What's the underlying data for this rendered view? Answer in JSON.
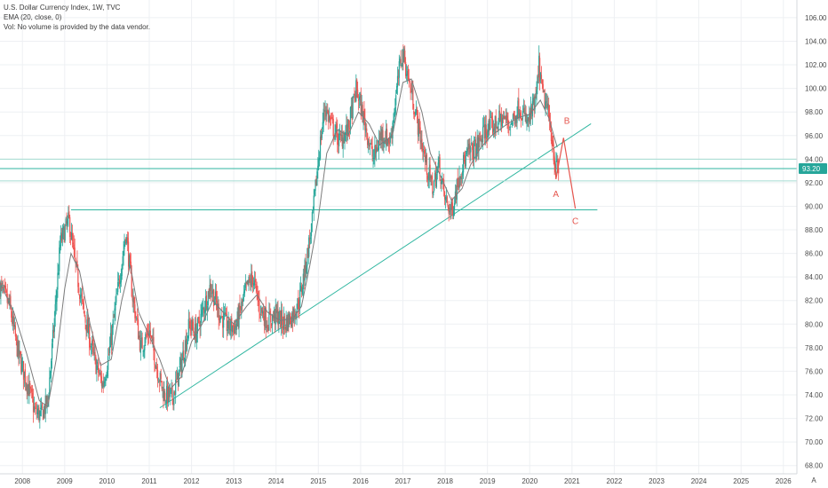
{
  "chart_data": {
    "type": "candlestick",
    "legend": {
      "title": "U.S. Dollar Currency Index, 1W, TVC",
      "indicator": "EMA (20, close, 0)",
      "volume_note": "Vol: No volume is provided by the data vendor."
    },
    "x_ticks": [
      "2008",
      "2009",
      "2010",
      "2011",
      "2012",
      "2013",
      "2014",
      "2015",
      "2016",
      "2017",
      "2018",
      "2019",
      "2020",
      "2021",
      "2022",
      "2023",
      "2024",
      "2025",
      "2026"
    ],
    "y_ticks": [
      68,
      70,
      72,
      74,
      76,
      78,
      80,
      82,
      84,
      86,
      88,
      90,
      92,
      94,
      96,
      98,
      100,
      102,
      104,
      106
    ],
    "y_tick_labels": [
      "68.00",
      "70.00",
      "72.00",
      "74.00",
      "76.00",
      "78.00",
      "80.00",
      "82.00",
      "84.00",
      "86.00",
      "88.00",
      "90.00",
      "92.00",
      "94.00",
      "96.00",
      "98.00",
      "100.00",
      "102.00",
      "104.00",
      "106.00"
    ],
    "ylim": [
      67.3,
      107.5
    ],
    "xlim": [
      2007.47,
      2026.32
    ],
    "grid": true,
    "price_path": [
      [
        2007.47,
        83.2
      ],
      [
        2007.7,
        81.5
      ],
      [
        2007.9,
        77.5
      ],
      [
        2008.15,
        74.5
      ],
      [
        2008.3,
        72.5
      ],
      [
        2008.45,
        72.3
      ],
      [
        2008.6,
        73.5
      ],
      [
        2008.75,
        80.0
      ],
      [
        2008.9,
        87.0
      ],
      [
        2009.1,
        88.8
      ],
      [
        2009.25,
        85.0
      ],
      [
        2009.45,
        81.0
      ],
      [
        2009.7,
        77.0
      ],
      [
        2009.9,
        74.8
      ],
      [
        2010.05,
        77.5
      ],
      [
        2010.3,
        84.0
      ],
      [
        2010.45,
        87.8
      ],
      [
        2010.6,
        82.5
      ],
      [
        2010.8,
        78.0
      ],
      [
        2011.0,
        79.5
      ],
      [
        2011.2,
        76.0
      ],
      [
        2011.35,
        74.0
      ],
      [
        2011.55,
        73.8
      ],
      [
        2011.75,
        76.5
      ],
      [
        2011.95,
        80.0
      ],
      [
        2012.1,
        79.2
      ],
      [
        2012.3,
        81.5
      ],
      [
        2012.45,
        83.3
      ],
      [
        2012.65,
        81.0
      ],
      [
        2012.85,
        79.8
      ],
      [
        2013.05,
        79.8
      ],
      [
        2013.3,
        83.0
      ],
      [
        2013.45,
        84.0
      ],
      [
        2013.6,
        81.5
      ],
      [
        2013.8,
        80.2
      ],
      [
        2014.0,
        80.8
      ],
      [
        2014.2,
        80.0
      ],
      [
        2014.4,
        80.8
      ],
      [
        2014.55,
        82.0
      ],
      [
        2014.7,
        85.0
      ],
      [
        2014.85,
        88.5
      ],
      [
        2015.0,
        94.0
      ],
      [
        2015.15,
        98.5
      ],
      [
        2015.3,
        97.0
      ],
      [
        2015.5,
        95.5
      ],
      [
        2015.7,
        96.5
      ],
      [
        2015.9,
        100.0
      ],
      [
        2016.1,
        97.0
      ],
      [
        2016.3,
        94.0
      ],
      [
        2016.5,
        96.2
      ],
      [
        2016.7,
        95.5
      ],
      [
        2016.95,
        102.5
      ],
      [
        2017.0,
        103.0
      ],
      [
        2017.15,
        100.5
      ],
      [
        2017.35,
        97.0
      ],
      [
        2017.55,
        93.5
      ],
      [
        2017.7,
        91.5
      ],
      [
        2017.85,
        93.5
      ],
      [
        2018.0,
        90.5
      ],
      [
        2018.15,
        89.5
      ],
      [
        2018.35,
        93.0
      ],
      [
        2018.55,
        94.5
      ],
      [
        2018.75,
        95.0
      ],
      [
        2018.95,
        96.5
      ],
      [
        2019.15,
        96.8
      ],
      [
        2019.35,
        97.5
      ],
      [
        2019.55,
        97.0
      ],
      [
        2019.75,
        98.5
      ],
      [
        2019.95,
        97.0
      ],
      [
        2020.15,
        99.0
      ],
      [
        2020.22,
        102.0
      ],
      [
        2020.3,
        99.5
      ],
      [
        2020.4,
        98.5
      ],
      [
        2020.5,
        96.5
      ],
      [
        2020.6,
        93.5
      ],
      [
        2020.7,
        92.8
      ]
    ],
    "ema_path": [
      [
        2007.47,
        83.5
      ],
      [
        2007.8,
        81.0
      ],
      [
        2008.1,
        77.5
      ],
      [
        2008.4,
        73.5
      ],
      [
        2008.6,
        73.0
      ],
      [
        2008.8,
        77.0
      ],
      [
        2009.0,
        83.0
      ],
      [
        2009.15,
        86.0
      ],
      [
        2009.35,
        84.5
      ],
      [
        2009.6,
        80.0
      ],
      [
        2009.85,
        76.5
      ],
      [
        2010.1,
        77.0
      ],
      [
        2010.35,
        82.0
      ],
      [
        2010.55,
        85.0
      ],
      [
        2010.75,
        81.0
      ],
      [
        2011.0,
        79.0
      ],
      [
        2011.25,
        77.0
      ],
      [
        2011.5,
        74.5
      ],
      [
        2011.75,
        75.5
      ],
      [
        2012.0,
        78.5
      ],
      [
        2012.25,
        80.0
      ],
      [
        2012.5,
        82.0
      ],
      [
        2012.75,
        81.0
      ],
      [
        2013.0,
        80.0
      ],
      [
        2013.3,
        81.5
      ],
      [
        2013.55,
        82.5
      ],
      [
        2013.8,
        81.0
      ],
      [
        2014.1,
        80.3
      ],
      [
        2014.4,
        80.5
      ],
      [
        2014.6,
        81.5
      ],
      [
        2014.8,
        85.0
      ],
      [
        2015.0,
        89.0
      ],
      [
        2015.2,
        94.5
      ],
      [
        2015.45,
        96.5
      ],
      [
        2015.7,
        96.0
      ],
      [
        2015.95,
        98.0
      ],
      [
        2016.2,
        97.0
      ],
      [
        2016.45,
        95.2
      ],
      [
        2016.75,
        96.0
      ],
      [
        2017.0,
        100.5
      ],
      [
        2017.2,
        100.8
      ],
      [
        2017.45,
        98.0
      ],
      [
        2017.65,
        94.5
      ],
      [
        2017.9,
        92.5
      ],
      [
        2018.15,
        90.5
      ],
      [
        2018.4,
        91.5
      ],
      [
        2018.6,
        93.5
      ],
      [
        2018.85,
        95.0
      ],
      [
        2019.1,
        96.0
      ],
      [
        2019.4,
        96.8
      ],
      [
        2019.7,
        97.5
      ],
      [
        2020.0,
        97.8
      ],
      [
        2020.25,
        99.0
      ],
      [
        2020.45,
        97.5
      ],
      [
        2020.65,
        95.0
      ]
    ],
    "trendlines": [
      {
        "from": [
          2011.25,
          72.9
        ],
        "to": [
          2021.45,
          97.0
        ],
        "color": "#2fb6a0"
      },
      {
        "from": [
          2009.15,
          89.7
        ],
        "to": [
          2021.6,
          89.7
        ],
        "color": "#2fb6a0"
      },
      {
        "from": [
          2007.47,
          93.2
        ],
        "to": [
          2026.32,
          93.2
        ],
        "color": "#2fb6a0"
      },
      {
        "from": [
          2007.47,
          94.0
        ],
        "to": [
          2026.32,
          94.0
        ],
        "color": "#a5dcd2"
      },
      {
        "from": [
          2007.47,
          92.15
        ],
        "to": [
          2026.32,
          92.15
        ],
        "color": "#a5dcd2"
      }
    ],
    "projection": {
      "color": "#e5554d",
      "points": [
        [
          2020.55,
          96.0
        ],
        [
          2020.62,
          92.3
        ],
        [
          2020.8,
          95.8
        ],
        [
          2021.08,
          89.8
        ]
      ]
    },
    "wave_labels": [
      {
        "text": "A",
        "x": 2020.62,
        "y": 90.8
      },
      {
        "text": "B",
        "x": 2020.88,
        "y": 97.0
      },
      {
        "text": "C",
        "x": 2021.08,
        "y": 88.5
      }
    ],
    "last_price": {
      "value": 93.2,
      "label": "93.20",
      "color": "#26a69a"
    },
    "colors": {
      "up": "#26a69a",
      "down": "#ef5350",
      "ema": "#7b7b7b",
      "grid": "#eef0f3"
    },
    "corner_label": "A"
  }
}
